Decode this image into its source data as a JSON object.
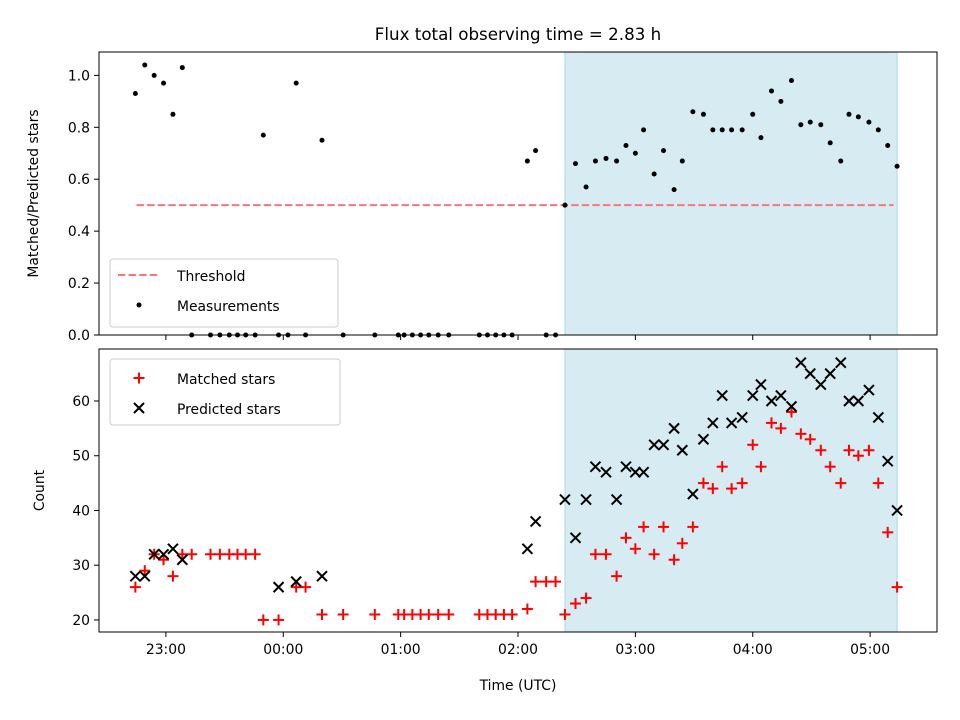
{
  "chart_data": {
    "type": "scatter",
    "title": "Flux total observing time = 2.83 h",
    "xlabel": "Time (UTC)",
    "x_unit": "hours relative to 00:00 UTC",
    "xlim": [
      -1.57,
      5.57
    ],
    "xticks": [
      {
        "value": -1,
        "label": "23:00"
      },
      {
        "value": 0,
        "label": "00:00"
      },
      {
        "value": 1,
        "label": "01:00"
      },
      {
        "value": 2,
        "label": "02:00"
      },
      {
        "value": 3,
        "label": "03:00"
      },
      {
        "value": 4,
        "label": "04:00"
      },
      {
        "value": 5,
        "label": "05:00"
      }
    ],
    "highlight": {
      "x_start": 2.4,
      "x_end": 5.23,
      "color": "#add8e6"
    },
    "panels": [
      {
        "ylabel": "Matched/Predicted stars",
        "ylim": [
          0,
          1.09
        ],
        "yticks": [
          {
            "value": 0,
            "label": "0.0"
          },
          {
            "value": 0.2,
            "label": "0.2"
          },
          {
            "value": 0.4,
            "label": "0.4"
          },
          {
            "value": 0.6,
            "label": "0.6"
          },
          {
            "value": 0.8,
            "label": "0.8"
          },
          {
            "value": 1.0,
            "label": "1.0"
          }
        ],
        "legend_position": "lower-left",
        "threshold": {
          "name": "Threshold",
          "value": 0.5,
          "x_start": -1.25,
          "x_end": 5.2,
          "color": "#f87878"
        },
        "series": [
          {
            "name": "Measurements",
            "color": "#000000",
            "marker": "dot",
            "points": [
              [
                -1.26,
                0.93
              ],
              [
                -1.18,
                1.04
              ],
              [
                -1.1,
                1.0
              ],
              [
                -1.02,
                0.97
              ],
              [
                -0.94,
                0.85
              ],
              [
                -0.86,
                1.03
              ],
              [
                -0.78,
                0
              ],
              [
                -0.62,
                0
              ],
              [
                -0.54,
                0
              ],
              [
                -0.46,
                0
              ],
              [
                -0.39,
                0
              ],
              [
                -0.32,
                0
              ],
              [
                -0.24,
                0
              ],
              [
                -0.17,
                0.77
              ],
              [
                -0.04,
                0
              ],
              [
                0.04,
                0
              ],
              [
                0.11,
                0.97
              ],
              [
                0.19,
                0
              ],
              [
                0.33,
                0.75
              ],
              [
                0.51,
                0
              ],
              [
                0.78,
                0
              ],
              [
                0.98,
                0
              ],
              [
                1.03,
                0
              ],
              [
                1.1,
                0
              ],
              [
                1.17,
                0
              ],
              [
                1.24,
                0
              ],
              [
                1.32,
                0
              ],
              [
                1.41,
                0
              ],
              [
                1.67,
                0
              ],
              [
                1.74,
                0
              ],
              [
                1.81,
                0
              ],
              [
                1.88,
                0
              ],
              [
                1.95,
                0
              ],
              [
                2.08,
                0.67
              ],
              [
                2.15,
                0.71
              ],
              [
                2.24,
                0
              ],
              [
                2.32,
                0
              ],
              [
                2.4,
                0.5
              ],
              [
                2.49,
                0.66
              ],
              [
                2.58,
                0.57
              ],
              [
                2.66,
                0.67
              ],
              [
                2.75,
                0.68
              ],
              [
                2.84,
                0.67
              ],
              [
                2.92,
                0.73
              ],
              [
                3.0,
                0.7
              ],
              [
                3.07,
                0.79
              ],
              [
                3.16,
                0.62
              ],
              [
                3.24,
                0.71
              ],
              [
                3.33,
                0.56
              ],
              [
                3.4,
                0.67
              ],
              [
                3.49,
                0.86
              ],
              [
                3.58,
                0.85
              ],
              [
                3.66,
                0.79
              ],
              [
                3.74,
                0.79
              ],
              [
                3.82,
                0.79
              ],
              [
                3.91,
                0.79
              ],
              [
                4.0,
                0.85
              ],
              [
                4.07,
                0.76
              ],
              [
                4.16,
                0.94
              ],
              [
                4.24,
                0.9
              ],
              [
                4.33,
                0.98
              ],
              [
                4.41,
                0.81
              ],
              [
                4.49,
                0.82
              ],
              [
                4.58,
                0.81
              ],
              [
                4.66,
                0.74
              ],
              [
                4.75,
                0.67
              ],
              [
                4.82,
                0.85
              ],
              [
                4.9,
                0.84
              ],
              [
                4.99,
                0.82
              ],
              [
                5.07,
                0.79
              ],
              [
                5.15,
                0.73
              ],
              [
                5.23,
                0.65
              ]
            ]
          }
        ]
      },
      {
        "ylabel": "Count",
        "ylim": [
          17.8,
          69.5
        ],
        "yticks": [
          {
            "value": 20,
            "label": "20"
          },
          {
            "value": 30,
            "label": "30"
          },
          {
            "value": 40,
            "label": "40"
          },
          {
            "value": 50,
            "label": "50"
          },
          {
            "value": 60,
            "label": "60"
          }
        ],
        "legend_position": "top-left",
        "series": [
          {
            "name": "Matched stars",
            "color": "#ff0000",
            "marker": "plus",
            "points": [
              [
                -1.26,
                26
              ],
              [
                -1.18,
                29
              ],
              [
                -1.1,
                32
              ],
              [
                -1.02,
                31
              ],
              [
                -0.94,
                28
              ],
              [
                -0.86,
                32
              ],
              [
                -0.78,
                32
              ],
              [
                -0.62,
                32
              ],
              [
                -0.54,
                32
              ],
              [
                -0.46,
                32
              ],
              [
                -0.39,
                32
              ],
              [
                -0.32,
                32
              ],
              [
                -0.24,
                32
              ],
              [
                -0.17,
                20
              ],
              [
                -0.04,
                20
              ],
              [
                0.11,
                26
              ],
              [
                0.19,
                26
              ],
              [
                0.33,
                21
              ],
              [
                0.51,
                21
              ],
              [
                0.78,
                21
              ],
              [
                0.98,
                21
              ],
              [
                1.03,
                21
              ],
              [
                1.1,
                21
              ],
              [
                1.17,
                21
              ],
              [
                1.24,
                21
              ],
              [
                1.32,
                21
              ],
              [
                1.41,
                21
              ],
              [
                1.67,
                21
              ],
              [
                1.74,
                21
              ],
              [
                1.81,
                21
              ],
              [
                1.88,
                21
              ],
              [
                1.95,
                21
              ],
              [
                2.08,
                22
              ],
              [
                2.15,
                27
              ],
              [
                2.24,
                27
              ],
              [
                2.32,
                27
              ],
              [
                2.4,
                21
              ],
              [
                2.49,
                23
              ],
              [
                2.58,
                24
              ],
              [
                2.66,
                32
              ],
              [
                2.75,
                32
              ],
              [
                2.84,
                28
              ],
              [
                2.92,
                35
              ],
              [
                3.0,
                33
              ],
              [
                3.07,
                37
              ],
              [
                3.16,
                32
              ],
              [
                3.24,
                37
              ],
              [
                3.33,
                31
              ],
              [
                3.4,
                34
              ],
              [
                3.49,
                37
              ],
              [
                3.58,
                45
              ],
              [
                3.66,
                44
              ],
              [
                3.74,
                48
              ],
              [
                3.82,
                44
              ],
              [
                3.91,
                45
              ],
              [
                4.0,
                52
              ],
              [
                4.07,
                48
              ],
              [
                4.16,
                56
              ],
              [
                4.24,
                55
              ],
              [
                4.33,
                58
              ],
              [
                4.41,
                54
              ],
              [
                4.49,
                53
              ],
              [
                4.58,
                51
              ],
              [
                4.66,
                48
              ],
              [
                4.75,
                45
              ],
              [
                4.82,
                51
              ],
              [
                4.9,
                50
              ],
              [
                4.99,
                51
              ],
              [
                5.07,
                45
              ],
              [
                5.15,
                36
              ],
              [
                5.23,
                26
              ]
            ]
          },
          {
            "name": "Predicted stars",
            "color": "#000000",
            "marker": "x",
            "points": [
              [
                -1.26,
                28
              ],
              [
                -1.18,
                28
              ],
              [
                -1.1,
                32
              ],
              [
                -1.02,
                32
              ],
              [
                -0.94,
                33
              ],
              [
                -0.86,
                31
              ],
              [
                -0.04,
                26
              ],
              [
                0.11,
                27
              ],
              [
                0.33,
                28
              ],
              [
                2.08,
                33
              ],
              [
                2.15,
                38
              ],
              [
                2.4,
                42
              ],
              [
                2.49,
                35
              ],
              [
                2.58,
                42
              ],
              [
                2.66,
                48
              ],
              [
                2.75,
                47
              ],
              [
                2.84,
                42
              ],
              [
                2.92,
                48
              ],
              [
                3.0,
                47
              ],
              [
                3.07,
                47
              ],
              [
                3.16,
                52
              ],
              [
                3.24,
                52
              ],
              [
                3.33,
                55
              ],
              [
                3.4,
                51
              ],
              [
                3.49,
                43
              ],
              [
                3.58,
                53
              ],
              [
                3.66,
                56
              ],
              [
                3.74,
                61
              ],
              [
                3.82,
                56
              ],
              [
                3.91,
                57
              ],
              [
                4.0,
                61
              ],
              [
                4.07,
                63
              ],
              [
                4.16,
                60
              ],
              [
                4.24,
                61
              ],
              [
                4.33,
                59
              ],
              [
                4.41,
                67
              ],
              [
                4.49,
                65
              ],
              [
                4.58,
                63
              ],
              [
                4.66,
                65
              ],
              [
                4.75,
                67
              ],
              [
                4.82,
                60
              ],
              [
                4.9,
                60
              ],
              [
                4.99,
                62
              ],
              [
                5.07,
                57
              ],
              [
                5.15,
                49
              ],
              [
                5.23,
                40
              ]
            ]
          }
        ]
      }
    ]
  }
}
